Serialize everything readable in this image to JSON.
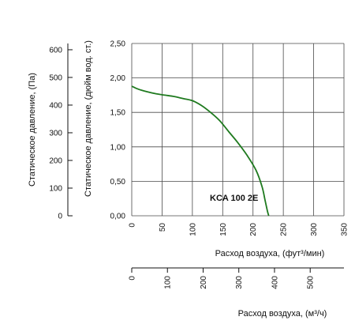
{
  "chart_data": {
    "type": "line",
    "series": [
      {
        "name": "KCA 100 2E",
        "color": "#1f7a1f",
        "x": [
          0,
          10,
          25,
          40,
          55,
          70,
          85,
          100,
          115,
          130,
          145,
          160,
          175,
          190,
          205,
          215,
          220,
          224,
          226
        ],
        "y": [
          1.88,
          1.84,
          1.8,
          1.77,
          1.75,
          1.73,
          1.7,
          1.67,
          1.6,
          1.5,
          1.38,
          1.22,
          1.06,
          0.88,
          0.66,
          0.42,
          0.22,
          0.06,
          0.0
        ]
      }
    ],
    "x_axis_cfm": {
      "label": "Расход воздуха, (фут³/мин)",
      "ticks": [
        "0",
        "50",
        "100",
        "150",
        "200",
        "250",
        "300",
        "350"
      ],
      "range": [
        0,
        350
      ]
    },
    "x_axis_m3h": {
      "label": "Расход воздуха, (м³/ч)",
      "ticks": [
        "0",
        "100",
        "200",
        "300",
        "400",
        "500"
      ],
      "range": [
        0,
        594.6
      ]
    },
    "y_axis_inwg": {
      "label": "Статическое давление, (дюйм вод. ст.)",
      "ticks": [
        "0,00",
        "0,50",
        "1,00",
        "1,50",
        "2,00",
        "2,50"
      ],
      "range": [
        0,
        2.5
      ]
    },
    "y_axis_pa": {
      "label": "Статическое давление, (Па)",
      "ticks": [
        "0",
        "100",
        "200",
        "300",
        "400",
        "500",
        "600"
      ],
      "range": [
        0,
        622.7
      ]
    },
    "grid": true
  }
}
